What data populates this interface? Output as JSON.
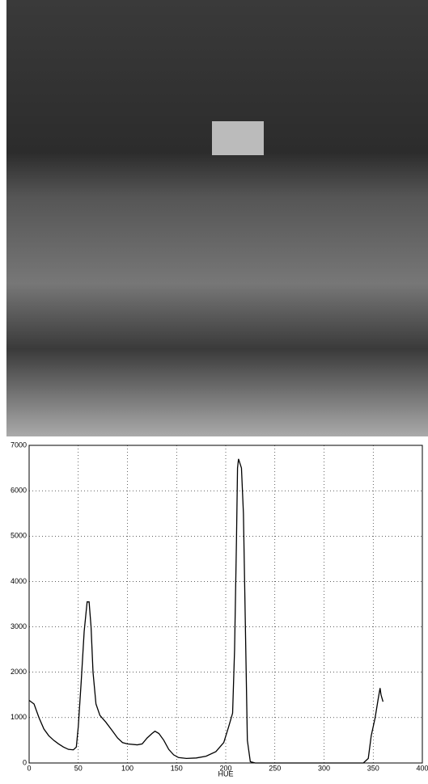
{
  "chart_data": {
    "type": "line",
    "x_label": "HUE",
    "x": [
      0,
      5,
      10,
      15,
      20,
      25,
      30,
      35,
      40,
      45,
      48,
      50,
      53,
      56,
      59,
      61,
      63,
      65,
      68,
      72,
      78,
      85,
      90,
      95,
      100,
      110,
      115,
      120,
      125,
      128,
      132,
      137,
      142,
      147,
      152,
      160,
      170,
      180,
      190,
      198,
      203,
      207,
      209,
      211,
      212,
      213,
      216,
      218,
      220,
      222,
      225,
      230,
      340,
      345,
      348,
      352,
      355,
      357,
      358,
      360
    ],
    "series": [
      {
        "color": "#000000",
        "values": [
          1380,
          1300,
          1000,
          750,
          600,
          500,
          420,
          350,
          300,
          290,
          350,
          800,
          1800,
          2900,
          3550,
          3550,
          3000,
          2000,
          1300,
          1050,
          900,
          700,
          550,
          450,
          420,
          400,
          420,
          550,
          650,
          700,
          650,
          500,
          300,
          180,
          120,
          100,
          110,
          150,
          250,
          450,
          800,
          1100,
          2500,
          5000,
          6500,
          6700,
          6500,
          5500,
          3000,
          500,
          30,
          0,
          0,
          100,
          600,
          1000,
          1400,
          1650,
          1500,
          1350
        ]
      }
    ],
    "xlim": [
      0,
      400
    ],
    "xticks": [
      0,
      50,
      100,
      150,
      200,
      250,
      300,
      350,
      400
    ],
    "ylim": [
      0,
      7000
    ],
    "yticks": [
      0,
      1000,
      2000,
      3000,
      4000,
      5000,
      6000,
      7000
    ],
    "grid": true
  }
}
